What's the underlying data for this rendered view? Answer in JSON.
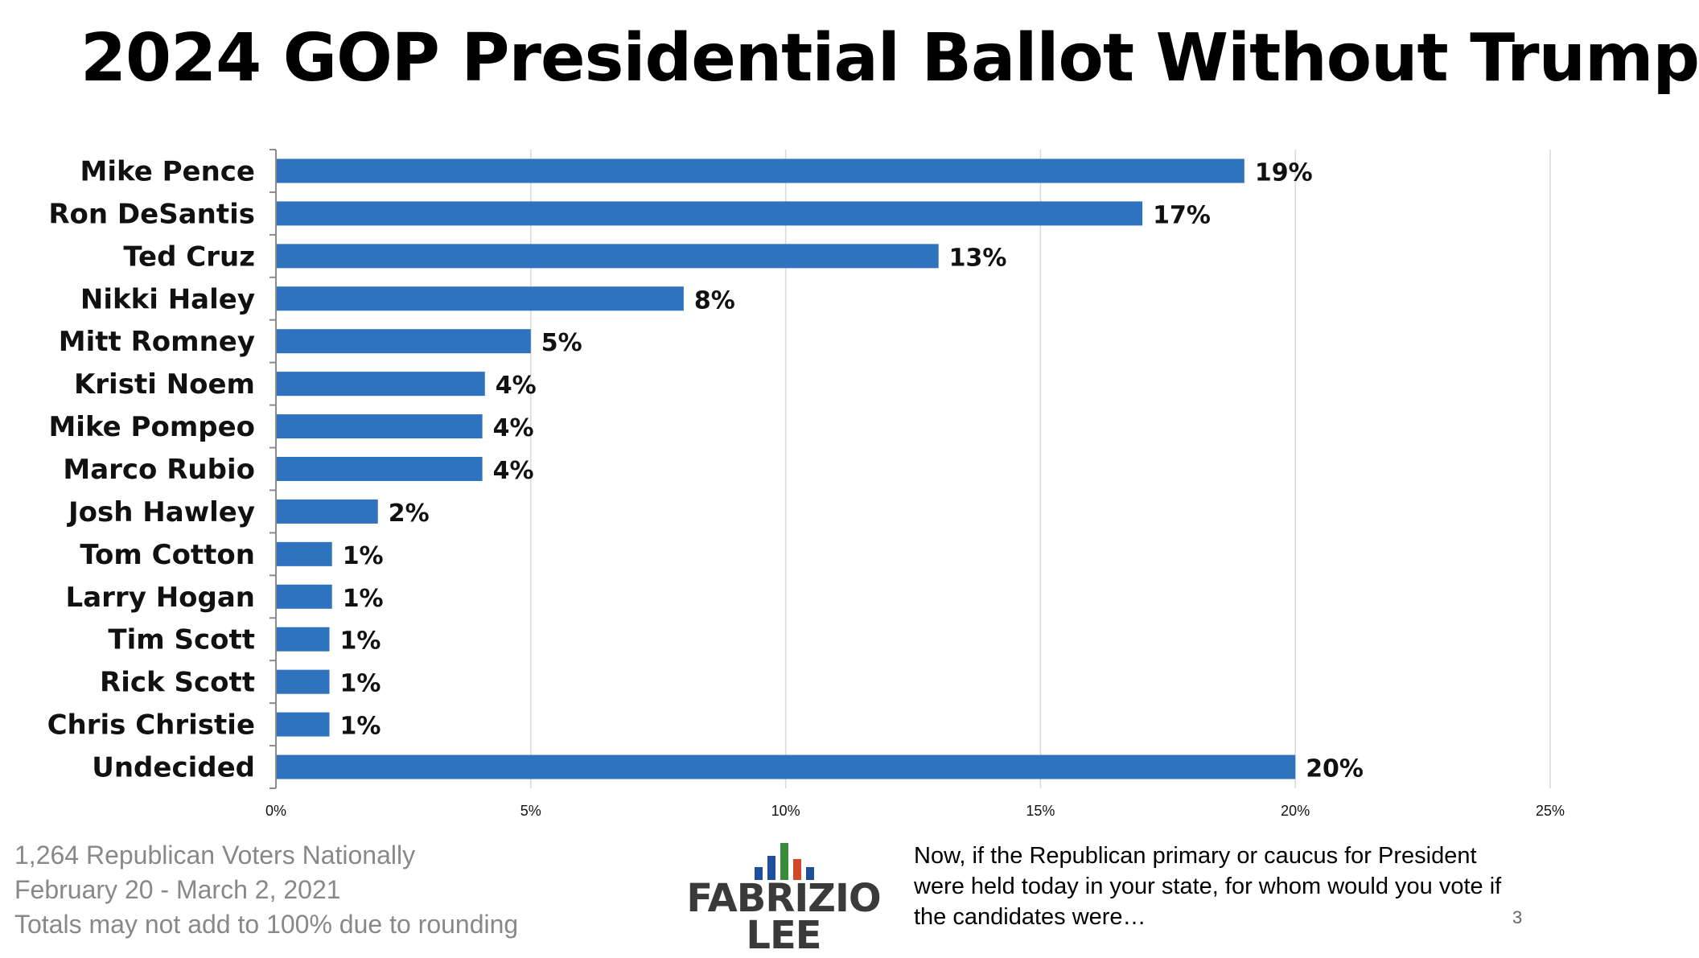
{
  "chart_data": {
    "type": "bar",
    "orientation": "horizontal",
    "title": "2024 GOP Presidential Ballot Without Trump",
    "categories": [
      "Mike Pence",
      "Ron DeSantis",
      "Ted Cruz",
      "Nikki Haley",
      "Mitt Romney",
      "Kristi Noem",
      "Mike Pompeo",
      "Marco Rubio",
      "Josh Hawley",
      "Tom Cotton",
      "Larry Hogan",
      "Tim Scott",
      "Rick Scott",
      "Chris Christie",
      "Undecided"
    ],
    "values": [
      19,
      17,
      13,
      8,
      5,
      4.1,
      4.05,
      4.05,
      2,
      1.1,
      1.1,
      1.05,
      1.05,
      1.05,
      20
    ],
    "value_labels": [
      "19%",
      "17%",
      "13%",
      "8%",
      "5%",
      "4%",
      "4%",
      "4%",
      "2%",
      "1%",
      "1%",
      "1%",
      "1%",
      "1%",
      "20%"
    ],
    "xlim": [
      0,
      25
    ],
    "xticks": [
      0,
      5,
      10,
      15,
      20,
      25
    ],
    "xtick_labels": [
      "0%",
      "5%",
      "10%",
      "15%",
      "20%",
      "25%"
    ],
    "xlabel": "",
    "ylabel": "",
    "grid": true,
    "bar_color": "#2f72bd"
  },
  "footer": {
    "sample": "1,264 Republican Voters Nationally",
    "dates": "February 20 - March 2, 2021",
    "note": "Totals may not add to 100% due to rounding"
  },
  "logo": {
    "line1": "FABRIZIO",
    "line2": "LEE",
    "bar_colors": [
      "#1f4e9a",
      "#1f4e9a",
      "#3a8c3a",
      "#d04a2a",
      "#1f4e9a"
    ]
  },
  "question": {
    "line1": "Now, if the Republican primary or caucus for President",
    "line2": "were held today in your state, for whom would you vote if",
    "line3": "the candidates were…"
  },
  "page_number": "3"
}
